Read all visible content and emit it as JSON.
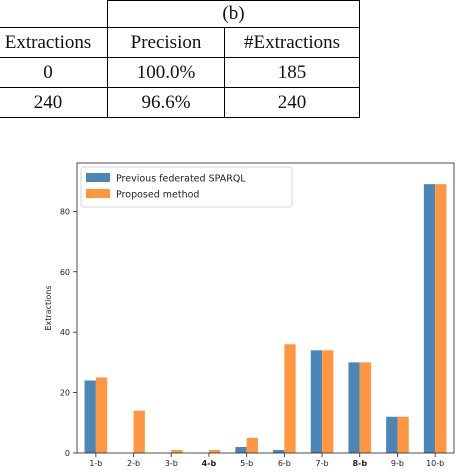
{
  "table": {
    "group_label": "(b)",
    "columns": [
      "Extractions",
      "Precision",
      "#Extractions"
    ],
    "rows": [
      [
        "0",
        "100.0%",
        "185"
      ],
      [
        "240",
        "96.6%",
        "240"
      ]
    ]
  },
  "chart_data": {
    "type": "bar",
    "categories": [
      "1-b",
      "2-b",
      "3-b",
      "4-b",
      "5-b",
      "6-b",
      "7-b",
      "8-b",
      "9-b",
      "10-b"
    ],
    "bold_categories": [
      "4-b",
      "8-b"
    ],
    "series": [
      {
        "name": "Previous federated SPARQL",
        "color": "#4c86b6",
        "values": [
          24,
          0,
          0,
          0,
          2,
          1,
          34,
          30,
          12,
          89
        ]
      },
      {
        "name": "Proposed method",
        "color": "#ff9742",
        "values": [
          25,
          14,
          1,
          1,
          5,
          36,
          34,
          30,
          12,
          89
        ]
      }
    ],
    "ylabel": "Extractions",
    "xlabel": "",
    "ylim": [
      0,
      96
    ],
    "yticks": [
      0,
      20,
      40,
      60,
      80
    ],
    "legend": "top-left",
    "grid": false
  }
}
